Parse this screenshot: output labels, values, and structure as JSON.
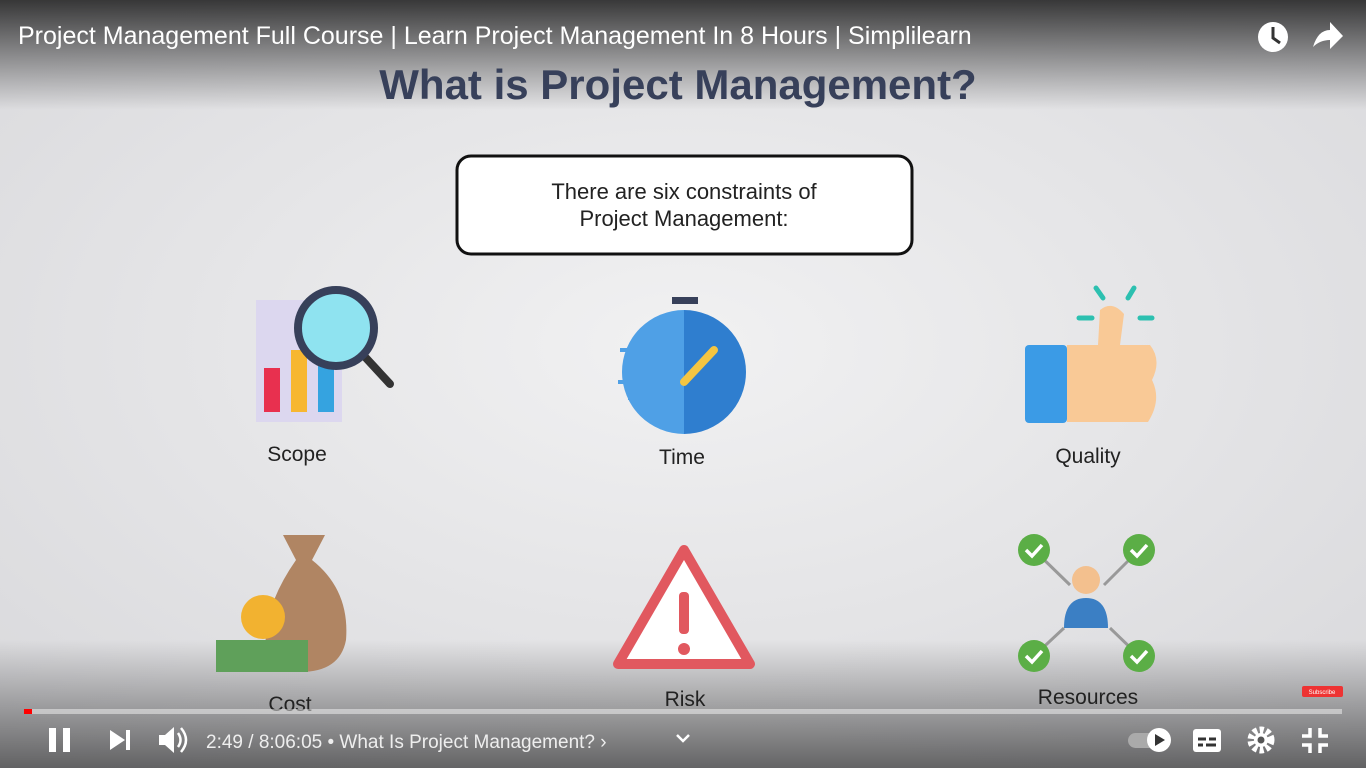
{
  "player": {
    "video_title": "Project Management Full Course | Learn Project Management In 8 Hours | Simplilearn",
    "time_and_chapter": "2:49 / 8:06:05 • What Is Project Management? ›",
    "watermark": "Subscribe"
  },
  "slide": {
    "heading": "What is Project Management?",
    "callout_lines": [
      "There are six constraints of",
      "Project Management:"
    ],
    "constraints": [
      "Scope",
      "Time",
      "Quality",
      "Cost",
      "Risk",
      "Resources"
    ]
  }
}
